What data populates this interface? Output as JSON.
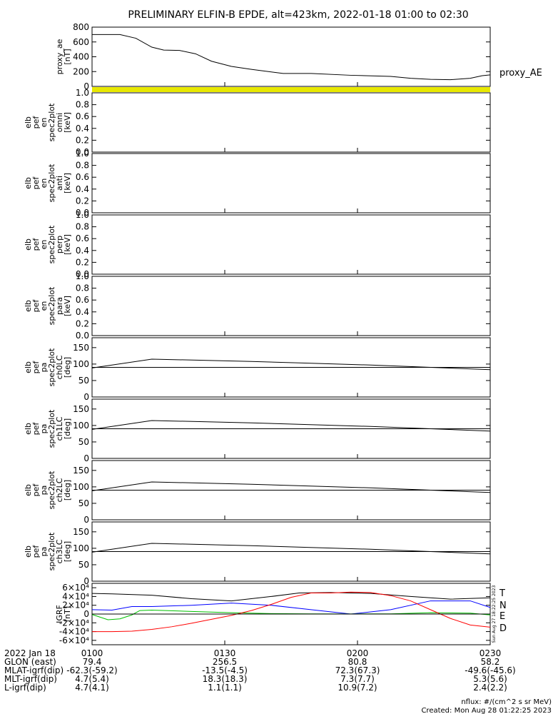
{
  "title": "PRELIMINARY ELFIN-B EPDE, alt=423km, 2022-01-18 01:00 to 02:30",
  "colors": {
    "axes": "#000000",
    "yellow_band": "#e8e800",
    "T": "#000000",
    "N": "#0000ff",
    "E": "#00c000",
    "D": "#ff0000"
  },
  "chart_data": [
    {
      "type": "line",
      "ylabel_lines": [
        "proxy_ae",
        "[nT]"
      ],
      "legend": [
        "proxy_AE"
      ],
      "ylim": [
        0,
        800
      ],
      "yticks": [
        "0",
        "200",
        "400",
        "600",
        "800"
      ],
      "series": [
        {
          "name": "proxy_AE",
          "x": [
            0,
            3,
            7,
            11,
            15,
            18,
            22,
            26,
            30,
            35,
            40,
            48,
            55,
            65,
            75,
            80,
            85,
            90,
            95,
            98,
            100
          ],
          "values": [
            700,
            700,
            700,
            650,
            530,
            490,
            485,
            440,
            340,
            270,
            230,
            175,
            175,
            150,
            135,
            110,
            95,
            90,
            110,
            145,
            155
          ]
        }
      ],
      "extra": "yellow band beneath panel"
    },
    {
      "type": "heatmap",
      "ylabel_lines": [
        "elb",
        "pef",
        "en",
        "spec2plot",
        "omni",
        "[keV]"
      ],
      "ylim": [
        0,
        1
      ],
      "yticks": [
        "0.0",
        "0.2",
        "0.4",
        "0.6",
        "0.8",
        "1.0"
      ]
    },
    {
      "type": "heatmap",
      "ylabel_lines": [
        "elb",
        "pef",
        "en",
        "spec2plot",
        "anti",
        "[keV]"
      ],
      "ylim": [
        0,
        1
      ],
      "yticks": [
        "0.0",
        "0.2",
        "0.4",
        "0.6",
        "0.8",
        "1.0"
      ]
    },
    {
      "type": "heatmap",
      "ylabel_lines": [
        "elb",
        "pef",
        "en",
        "spec2plot",
        "perp",
        "[keV]"
      ],
      "ylim": [
        0,
        1
      ],
      "yticks": [
        "0.0",
        "0.2",
        "0.4",
        "0.6",
        "0.8",
        "1.0"
      ]
    },
    {
      "type": "heatmap",
      "ylabel_lines": [
        "elb",
        "pef",
        "en",
        "spec2plot",
        "para",
        "[keV]"
      ],
      "ylim": [
        0,
        1
      ],
      "yticks": [
        "0.0",
        "0.2",
        "0.4",
        "0.6",
        "0.8",
        "1.0"
      ]
    },
    {
      "type": "line",
      "ylabel_lines": [
        "elb",
        "pef",
        "pa",
        "spec2plot",
        "ch0LC",
        "[deg]"
      ],
      "ylim": [
        0,
        180
      ],
      "yticks": [
        "0",
        "50",
        "100",
        "150"
      ],
      "series": [
        {
          "x": [
            0,
            15,
            40,
            70,
            100
          ],
          "values": [
            88,
            115,
            108,
            97,
            83
          ]
        },
        {
          "x": [
            0,
            100
          ],
          "values": [
            90,
            90
          ]
        }
      ]
    },
    {
      "type": "line",
      "ylabel_lines": [
        "elb",
        "pef",
        "pa",
        "spec2plot",
        "ch1LC",
        "[deg]"
      ],
      "ylim": [
        0,
        180
      ],
      "yticks": [
        "0",
        "50",
        "100",
        "150"
      ],
      "series": [
        {
          "x": [
            0,
            15,
            40,
            70,
            100
          ],
          "values": [
            88,
            115,
            108,
            97,
            83
          ]
        },
        {
          "x": [
            0,
            100
          ],
          "values": [
            90,
            90
          ]
        }
      ]
    },
    {
      "type": "line",
      "ylabel_lines": [
        "elb",
        "pef",
        "pa",
        "spec2plot",
        "ch2LC",
        "[deg]"
      ],
      "ylim": [
        0,
        180
      ],
      "yticks": [
        "0",
        "50",
        "100",
        "150"
      ],
      "series": [
        {
          "x": [
            0,
            15,
            40,
            70,
            100
          ],
          "values": [
            88,
            115,
            108,
            97,
            83
          ]
        },
        {
          "x": [
            0,
            100
          ],
          "values": [
            90,
            90
          ]
        }
      ]
    },
    {
      "type": "line",
      "ylabel_lines": [
        "elb",
        "pef",
        "pa",
        "spec2plot",
        "ch3LC",
        "[deg]"
      ],
      "ylim": [
        0,
        180
      ],
      "yticks": [
        "0",
        "50",
        "100",
        "150"
      ],
      "series": [
        {
          "x": [
            0,
            15,
            40,
            70,
            100
          ],
          "values": [
            88,
            115,
            108,
            97,
            83
          ]
        },
        {
          "x": [
            0,
            100
          ],
          "values": [
            90,
            90
          ]
        }
      ]
    },
    {
      "type": "line",
      "ylabel_lines": [
        "IGRF",
        "[nT]"
      ],
      "ylim": [
        -70000,
        70000
      ],
      "yticks": [
        "-6×10⁴",
        "-4×10⁴",
        "-2×10⁴",
        "0",
        "2×10⁴",
        "4×10⁴",
        "6×10⁴"
      ],
      "legend": [
        "T",
        "N",
        "E",
        "D"
      ],
      "series": [
        {
          "name": "T",
          "x": [
            0,
            5,
            15,
            25,
            35,
            45,
            52,
            60,
            70,
            80,
            90,
            100
          ],
          "values": [
            47000,
            46000,
            43000,
            35000,
            30000,
            40000,
            48000,
            49000,
            47000,
            40000,
            34000,
            37000
          ]
        },
        {
          "name": "N",
          "x": [
            0,
            5,
            10,
            15,
            25,
            35,
            45,
            55,
            65,
            75,
            85,
            95,
            100
          ],
          "values": [
            10000,
            9000,
            17000,
            17000,
            20000,
            25000,
            20000,
            10000,
            0,
            10000,
            30000,
            30000,
            15000
          ]
        },
        {
          "name": "E",
          "x": [
            0,
            4,
            7,
            10,
            12,
            15,
            25,
            35,
            45,
            55,
            65,
            75,
            85,
            95,
            100
          ],
          "values": [
            -1000,
            -13000,
            -11000,
            -2000,
            8000,
            9000,
            6000,
            3000,
            1000,
            500,
            300,
            500,
            3000,
            2000,
            -2000
          ]
        },
        {
          "name": "D",
          "x": [
            0,
            5,
            10,
            15,
            20,
            25,
            30,
            35,
            40,
            45,
            50,
            55,
            60,
            65,
            70,
            75,
            80,
            85,
            90,
            95,
            100
          ],
          "values": [
            -40000,
            -40000,
            -39000,
            -35000,
            -29000,
            -21000,
            -12000,
            -3000,
            8000,
            22000,
            38000,
            48000,
            48000,
            50000,
            49000,
            42000,
            30000,
            10000,
            -10000,
            -25000,
            -30000
          ]
        }
      ],
      "side_text": "Sun Aug 27 18:22:25 2023"
    }
  ],
  "xaxis": {
    "ticks": [
      "0100",
      "0130",
      "0200",
      "0230"
    ],
    "rows": [
      {
        "label": "2022 Jan 18",
        "values": [
          "0100",
          "0130",
          "0200",
          "0230"
        ]
      },
      {
        "label": "GLON (east)",
        "values": [
          "79.4",
          "256.5",
          "80.8",
          "58.2"
        ]
      },
      {
        "label": "MLAT-igrf(dip)",
        "values": [
          "-62.3(-59.2)",
          "-13.5(-4.5)",
          "72.3(67.3)",
          "-49.6(-45.6)"
        ]
      },
      {
        "label": "MLT-igrf(dip)",
        "values": [
          "4.7(5.4)",
          "18.3(18.3)",
          "7.3(7.7)",
          "5.3(5.6)"
        ]
      },
      {
        "label": "L-igrf(dip)",
        "values": [
          "4.7(4.1)",
          "1.1(1.1)",
          "10.9(7.2)",
          "2.4(2.2)"
        ]
      }
    ]
  },
  "footer": {
    "units": "nflux: #/(cm^2 s sr MeV)",
    "created": "Created: Mon Aug 28 01:22:25 2023"
  }
}
